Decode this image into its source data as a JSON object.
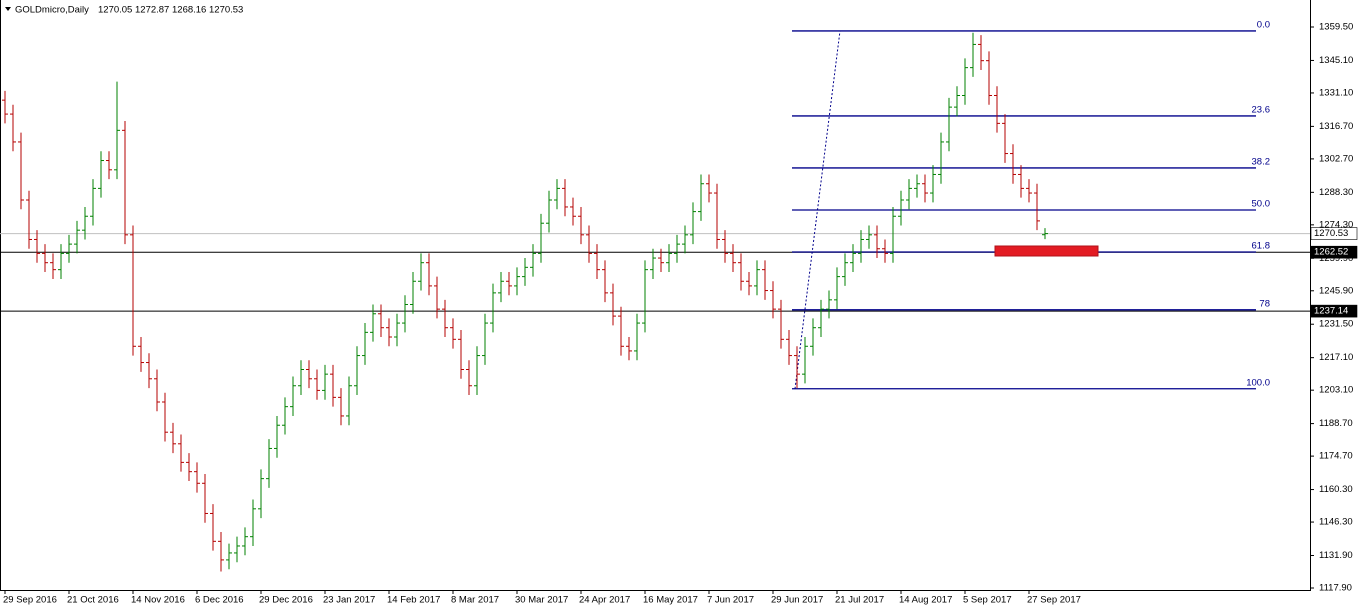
{
  "chart_data": {
    "type": "ohlc",
    "title": "GOLDmicro,Daily",
    "up_color": "#008000",
    "down_color": "#b40000",
    "categories": [
      "29 Sep 2016",
      null,
      null,
      null,
      null,
      null,
      null,
      null,
      "21 Oct 2016",
      null,
      null,
      null,
      null,
      null,
      null,
      null,
      "14 Nov 2016",
      null,
      null,
      null,
      null,
      null,
      null,
      null,
      "6 Dec 2016",
      null,
      null,
      null,
      null,
      null,
      null,
      null,
      "29 Dec 2016",
      null,
      null,
      null,
      null,
      null,
      null,
      null,
      "23 Jan 2017",
      null,
      null,
      null,
      null,
      null,
      null,
      null,
      "14 Feb 2017",
      null,
      null,
      null,
      null,
      null,
      null,
      null,
      "8 Mar 2017",
      null,
      null,
      null,
      null,
      null,
      null,
      null,
      "30 Mar 2017",
      null,
      null,
      null,
      null,
      null,
      null,
      null,
      "24 Apr 2017",
      null,
      null,
      null,
      null,
      null,
      null,
      null,
      "16 May 2017",
      null,
      null,
      null,
      null,
      null,
      null,
      null,
      "7 Jun 2017",
      null,
      null,
      null,
      null,
      null,
      null,
      null,
      "29 Jun 2017",
      null,
      null,
      null,
      null,
      null,
      null,
      null,
      "21 Jul 2017",
      null,
      null,
      null,
      null,
      null,
      null,
      null,
      "14 Aug 2017",
      null,
      null,
      null,
      null,
      null,
      null,
      null,
      "5 Sep 2017",
      null,
      null,
      null,
      null,
      null,
      null,
      null,
      "27 Sep 2017",
      null,
      null
    ],
    "open": [
      1328,
      1322,
      1310,
      1285,
      1268,
      1262,
      1258,
      1255,
      1262,
      1266,
      1272,
      1278,
      1290,
      1302,
      1298,
      1315,
      1270,
      1222,
      1215,
      1208,
      1198,
      1185,
      1180,
      1172,
      1168,
      1163,
      1150,
      1138,
      1130,
      1133,
      1136,
      1140,
      1152,
      1165,
      1178,
      1188,
      1196,
      1205,
      1212,
      1208,
      1203,
      1210,
      1200,
      1192,
      1205,
      1218,
      1228,
      1236,
      1230,
      1226,
      1232,
      1240,
      1250,
      1258,
      1248,
      1238,
      1230,
      1225,
      1212,
      1205,
      1218,
      1232,
      1245,
      1250,
      1248,
      1252,
      1256,
      1262,
      1275,
      1285,
      1290,
      1282,
      1278,
      1270,
      1262,
      1255,
      1245,
      1235,
      1222,
      1220,
      1232,
      1255,
      1260,
      1258,
      1262,
      1266,
      1270,
      1280,
      1292,
      1288,
      1268,
      1262,
      1258,
      1250,
      1248,
      1255,
      1246,
      1238,
      1225,
      1218,
      1210,
      1222,
      1230,
      1238,
      1242,
      1252,
      1258,
      1262,
      1268,
      1270,
      1264,
      1262,
      1278,
      1285,
      1290,
      1292,
      1288,
      1296,
      1310,
      1325,
      1330,
      1342,
      1352,
      1345,
      1330,
      1318,
      1305,
      1296,
      1290,
      1288,
      1270.05
    ],
    "high": [
      1332,
      1326,
      1314,
      1289,
      1272,
      1266,
      1262,
      1266,
      1270,
      1276,
      1282,
      1294,
      1306,
      1306,
      1336,
      1319,
      1274,
      1226,
      1219,
      1212,
      1202,
      1189,
      1184,
      1176,
      1172,
      1167,
      1154,
      1142,
      1137,
      1140,
      1144,
      1156,
      1169,
      1182,
      1192,
      1200,
      1209,
      1216,
      1216,
      1212,
      1214,
      1214,
      1204,
      1209,
      1222,
      1232,
      1240,
      1240,
      1234,
      1236,
      1244,
      1254,
      1262,
      1262,
      1252,
      1242,
      1234,
      1229,
      1216,
      1222,
      1236,
      1249,
      1254,
      1254,
      1256,
      1260,
      1266,
      1279,
      1289,
      1294,
      1294,
      1286,
      1282,
      1274,
      1266,
      1259,
      1249,
      1239,
      1226,
      1236,
      1259,
      1264,
      1264,
      1266,
      1270,
      1274,
      1284,
      1296,
      1296,
      1292,
      1272,
      1266,
      1262,
      1254,
      1259,
      1259,
      1250,
      1242,
      1229,
      1222,
      1226,
      1234,
      1242,
      1246,
      1256,
      1262,
      1266,
      1272,
      1274,
      1274,
      1268,
      1282,
      1289,
      1294,
      1296,
      1296,
      1300,
      1314,
      1329,
      1334,
      1346,
      1357,
      1356,
      1349,
      1334,
      1322,
      1309,
      1300,
      1294,
      1292,
      1272.87
    ],
    "low": [
      1318,
      1306,
      1281,
      1264,
      1258,
      1254,
      1251,
      1251,
      1258,
      1262,
      1268,
      1274,
      1286,
      1294,
      1294,
      1266,
      1218,
      1211,
      1204,
      1194,
      1181,
      1176,
      1168,
      1164,
      1159,
      1146,
      1134,
      1125,
      1126,
      1129,
      1132,
      1136,
      1148,
      1161,
      1174,
      1184,
      1192,
      1201,
      1204,
      1199,
      1199,
      1196,
      1188,
      1188,
      1201,
      1214,
      1224,
      1226,
      1222,
      1222,
      1228,
      1236,
      1246,
      1244,
      1234,
      1226,
      1221,
      1208,
      1201,
      1201,
      1214,
      1228,
      1241,
      1244,
      1244,
      1248,
      1252,
      1258,
      1271,
      1281,
      1278,
      1274,
      1266,
      1258,
      1251,
      1241,
      1231,
      1218,
      1216,
      1216,
      1228,
      1251,
      1254,
      1254,
      1258,
      1262,
      1266,
      1276,
      1284,
      1264,
      1258,
      1254,
      1246,
      1244,
      1244,
      1242,
      1234,
      1221,
      1214,
      1204,
      1206,
      1218,
      1226,
      1234,
      1238,
      1248,
      1254,
      1258,
      1264,
      1260,
      1258,
      1258,
      1274,
      1281,
      1286,
      1284,
      1284,
      1292,
      1306,
      1321,
      1326,
      1338,
      1341,
      1326,
      1314,
      1301,
      1292,
      1286,
      1284,
      1272,
      1268.16
    ],
    "close": [
      1322,
      1310,
      1285,
      1268,
      1262,
      1258,
      1255,
      1262,
      1266,
      1272,
      1278,
      1290,
      1302,
      1298,
      1315,
      1270,
      1222,
      1215,
      1208,
      1198,
      1185,
      1180,
      1172,
      1168,
      1163,
      1150,
      1138,
      1130,
      1133,
      1136,
      1140,
      1152,
      1165,
      1178,
      1188,
      1196,
      1205,
      1212,
      1208,
      1203,
      1210,
      1200,
      1192,
      1205,
      1218,
      1228,
      1236,
      1230,
      1226,
      1232,
      1240,
      1250,
      1258,
      1248,
      1238,
      1230,
      1225,
      1212,
      1205,
      1218,
      1232,
      1245,
      1250,
      1248,
      1252,
      1256,
      1262,
      1275,
      1285,
      1290,
      1282,
      1278,
      1270,
      1262,
      1255,
      1245,
      1235,
      1222,
      1220,
      1232,
      1255,
      1260,
      1258,
      1262,
      1266,
      1270,
      1280,
      1292,
      1288,
      1268,
      1262,
      1258,
      1250,
      1248,
      1255,
      1246,
      1238,
      1225,
      1218,
      1210,
      1222,
      1230,
      1238,
      1242,
      1252,
      1258,
      1262,
      1268,
      1270,
      1264,
      1262,
      1278,
      1285,
      1290,
      1292,
      1288,
      1296,
      1310,
      1325,
      1330,
      1342,
      1352,
      1345,
      1330,
      1318,
      1305,
      1296,
      1290,
      1288,
      1276,
      1270.53
    ],
    "ylim": [
      1117.04,
      1371.13
    ],
    "yticks": [
      {
        "value": 1359.5,
        "label": "1359.50"
      },
      {
        "value": 1345.1,
        "label": "1345.10"
      },
      {
        "value": 1331.1,
        "label": "1331.10"
      },
      {
        "value": 1316.7,
        "label": "1316.70"
      },
      {
        "value": 1302.7,
        "label": "1302.70"
      },
      {
        "value": 1288.3,
        "label": "1288.30"
      },
      {
        "value": 1274.3,
        "label": "1274.30"
      },
      {
        "value": 1259.9,
        "label": "1259.90"
      },
      {
        "value": 1245.9,
        "label": "1245.90"
      },
      {
        "value": 1231.5,
        "label": "1231.50"
      },
      {
        "value": 1217.1,
        "label": "1217.10"
      },
      {
        "value": 1203.1,
        "label": "1203.10"
      },
      {
        "value": 1188.7,
        "label": "1188.70"
      },
      {
        "value": 1174.7,
        "label": "1174.70"
      },
      {
        "value": 1160.3,
        "label": "1160.30"
      },
      {
        "value": 1146.3,
        "label": "1146.30"
      },
      {
        "value": 1131.9,
        "label": "1131.90"
      },
      {
        "value": 1117.9,
        "label": "1117.90"
      }
    ],
    "hlines": [
      {
        "price": 1262.52,
        "color": "#000000"
      },
      {
        "price": 1237.14,
        "color": "#000000"
      }
    ],
    "fibo": {
      "color": "#00008b",
      "levels": [
        {
          "label": "0.0",
          "price": 1357.8
        },
        {
          "label": "23.6",
          "price": 1321.2
        },
        {
          "label": "38.2",
          "price": 1298.8
        },
        {
          "label": "50.0",
          "price": 1280.7
        },
        {
          "label": "61.8",
          "price": 1262.6
        },
        {
          "label": "78",
          "price": 1237.7
        },
        {
          "label": "100.0",
          "price": 1203.7
        }
      ]
    }
  }
}
